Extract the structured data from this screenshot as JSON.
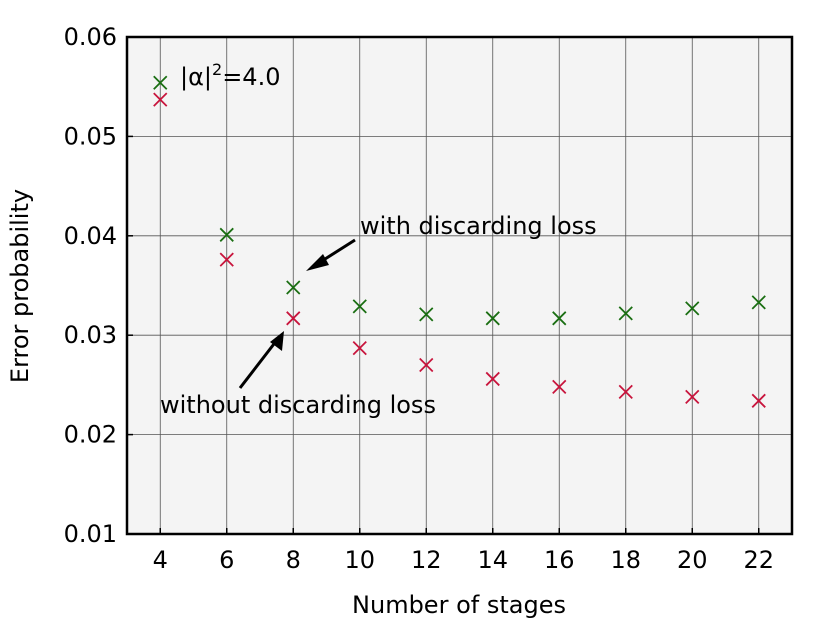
{
  "chart_data": {
    "type": "scatter",
    "xlabel": "Number of stages",
    "ylabel": "Error probability",
    "x": [
      4,
      6,
      8,
      10,
      12,
      14,
      16,
      18,
      20,
      22
    ],
    "xlim": [
      3,
      23
    ],
    "ylim": [
      0.01,
      0.06
    ],
    "xticks": [
      "4",
      "6",
      "8",
      "10",
      "12",
      "14",
      "16",
      "18",
      "20",
      "22"
    ],
    "yticks": [
      "0.01",
      "0.02",
      "0.03",
      "0.04",
      "0.05",
      "0.06"
    ],
    "grid": true,
    "marker": "x",
    "series": [
      {
        "values": [
          0.0554,
          0.0401,
          0.0348,
          0.0329,
          0.0321,
          0.0317,
          0.0317,
          0.0322,
          0.0327,
          0.0333
        ],
        "color": "#1a6e12"
      },
      {
        "values": [
          0.0537,
          0.0376,
          0.0317,
          0.0287,
          0.027,
          0.0256,
          0.0248,
          0.0243,
          0.0238,
          0.0234
        ],
        "color": "#c8143c"
      }
    ],
    "annotations": {
      "legend_text_main": "|α|",
      "legend_text_sup": "2",
      "legend_text_tail": "=4.0",
      "with_label": "with discarding loss",
      "without_label": "without discarding loss"
    },
    "colors": {
      "plot_background": "#f4f4f4",
      "grid": "#555555",
      "frame": "#000000",
      "arrow": "#000000"
    }
  }
}
